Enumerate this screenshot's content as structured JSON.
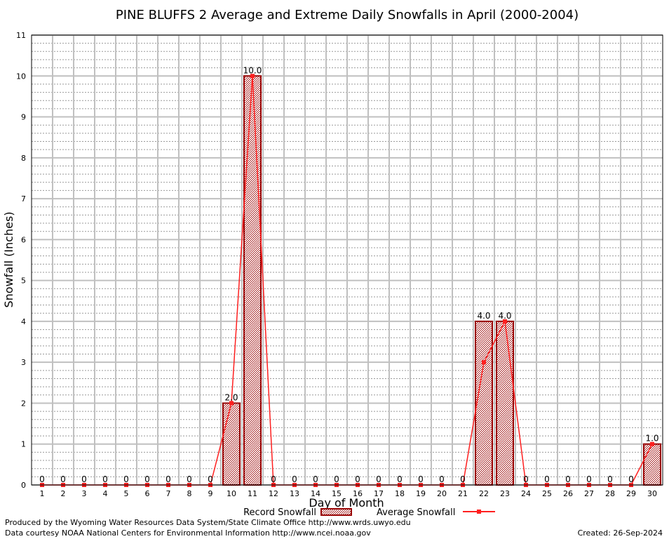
{
  "chart_data": {
    "type": "bar",
    "title": "PINE BLUFFS 2 Average and Extreme Daily Snowfalls in April (2000-2004)",
    "xlabel": "Day of Month",
    "ylabel": "Snowfall (Inches)",
    "ylim": [
      0,
      11
    ],
    "yticks": [
      "0",
      "1",
      "2",
      "3",
      "4",
      "5",
      "6",
      "7",
      "8",
      "9",
      "10",
      "11"
    ],
    "categories": [
      "1",
      "2",
      "3",
      "4",
      "5",
      "6",
      "7",
      "8",
      "9",
      "10",
      "11",
      "12",
      "13",
      "14",
      "15",
      "16",
      "17",
      "18",
      "19",
      "20",
      "21",
      "22",
      "23",
      "24",
      "25",
      "26",
      "27",
      "28",
      "29",
      "30"
    ],
    "series": [
      {
        "name": "Record Snowfall",
        "type": "bar",
        "color": "#990000",
        "values": [
          0,
          0,
          0,
          0,
          0,
          0,
          0,
          0,
          0,
          2.0,
          10.0,
          0,
          0,
          0,
          0,
          0,
          0,
          0,
          0,
          0,
          0,
          4.0,
          4.0,
          0,
          0,
          0,
          0,
          0,
          0,
          1.0
        ],
        "labels": [
          "0",
          "0",
          "0",
          "0",
          "0",
          "0",
          "0",
          "0",
          "0",
          "2.0",
          "10.0",
          "0",
          "0",
          "0",
          "0",
          "0",
          "0",
          "0",
          "0",
          "0",
          "0",
          "4.0",
          "4.0",
          "0",
          "0",
          "0",
          "0",
          "0",
          "0",
          "1.0"
        ]
      },
      {
        "name": "Average Snowfall",
        "type": "line",
        "color": "#ff2020",
        "values": [
          0,
          0,
          0,
          0,
          0,
          0,
          0,
          0,
          0,
          2.0,
          10.0,
          0,
          0,
          0,
          0,
          0,
          0,
          0,
          0,
          0,
          0,
          3.0,
          4.0,
          0,
          0,
          0,
          0,
          0,
          0,
          1.0
        ]
      }
    ],
    "grid": true,
    "legend_position": "bottom-center"
  },
  "footer": {
    "produced_by": "Produced by the Wyoming Water Resources Data System/State Climate Office http://www.wrds.uwyo.edu",
    "data_courtesy": "Data courtesy NOAA National Centers for Environmental Information http://www.ncei.noaa.gov",
    "created": "Created: 26-Sep-2024"
  }
}
